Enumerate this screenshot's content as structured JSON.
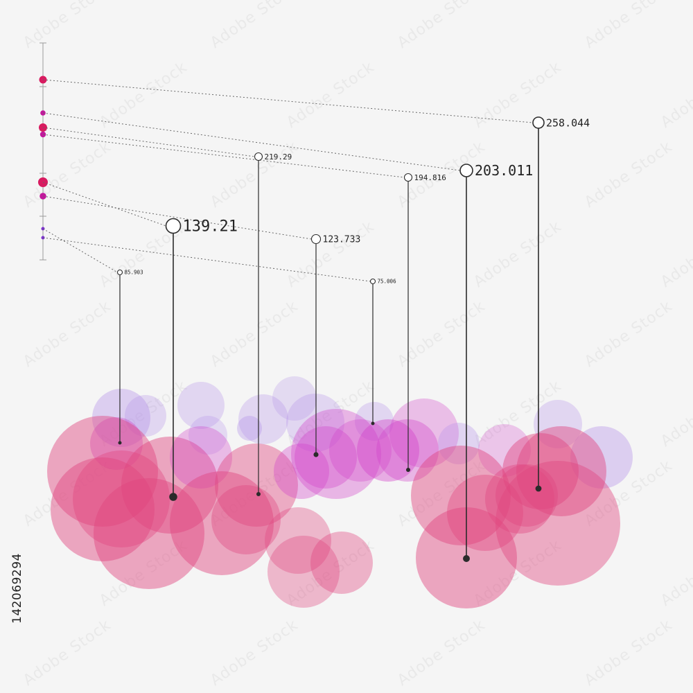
{
  "stock_id": "142069294",
  "colors": {
    "background": "#f5f5f5",
    "pin": "#2b2b2b",
    "bubble_pink": "#e0457f",
    "bubble_magenta": "#d13fc8",
    "bubble_lavender": "#b38ee8",
    "scale_dot_red": "#d81b60",
    "scale_dot_magenta": "#c2189c",
    "scale_dot_purple": "#7b2fd0"
  },
  "chart_data": {
    "type": "bubble-pin",
    "values": [
      258.044,
      219.29,
      203.011,
      194.816,
      139.21,
      123.733,
      85.903,
      75.006
    ],
    "labels": [
      "258.044",
      "219.29",
      "203.011",
      "194.816",
      "139.21",
      "123.733",
      "85.903",
      "75.006"
    ]
  }
}
